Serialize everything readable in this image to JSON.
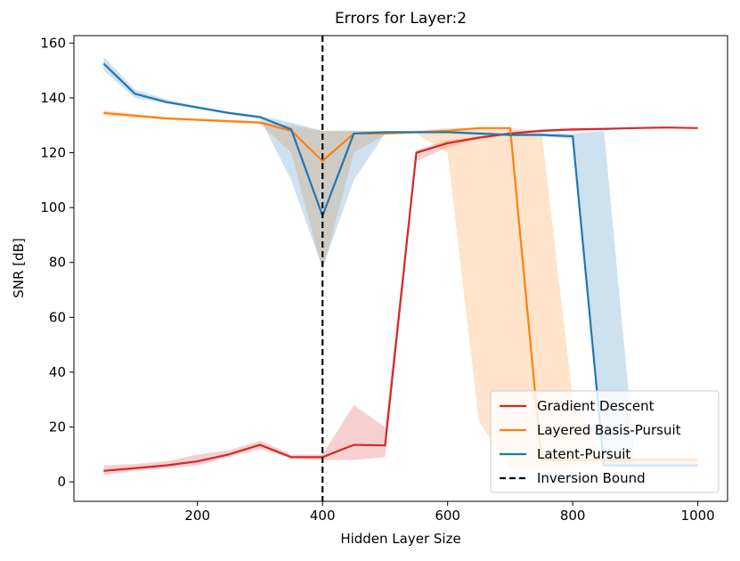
{
  "chart_data": {
    "type": "line",
    "title": "Errors for Layer:2",
    "x_label": "Hidden Layer Size",
    "y_label": "SNR [dB]",
    "x": [
      50,
      100,
      150,
      200,
      250,
      300,
      350,
      400,
      450,
      500,
      550,
      600,
      650,
      700,
      750,
      800,
      850,
      900,
      950,
      1000
    ],
    "series": [
      {
        "name": "Gradient Descent",
        "color": "#d62728",
        "values": [
          4,
          5,
          6,
          7.5,
          10,
          13.5,
          9,
          9,
          13.5,
          13.3,
          120,
          123.5,
          125.5,
          127,
          128,
          128.5,
          128.7,
          129,
          129.2,
          129
        ],
        "lower": [
          2.5,
          4,
          5,
          6,
          9,
          12,
          8.5,
          8,
          8,
          9,
          117,
          122,
          125,
          126.5,
          127.5,
          128,
          128.4,
          128.8,
          129,
          128.8
        ],
        "upper": [
          6,
          6.5,
          7.5,
          10,
          11.5,
          15,
          10,
          10,
          28,
          20,
          121,
          124.5,
          126,
          127.5,
          128.5,
          129,
          129,
          129.3,
          129.4,
          129.2
        ]
      },
      {
        "name": "Layered Basis-Pursuit",
        "color": "#ff7f0e",
        "values": [
          134.5,
          133.5,
          132.5,
          132,
          131.5,
          131,
          128,
          117,
          127,
          127,
          127.5,
          128,
          129,
          129,
          8,
          8,
          8,
          8,
          8,
          8
        ],
        "lower": [
          133.5,
          132.8,
          132,
          131.5,
          131,
          130.5,
          120,
          77,
          120,
          126.5,
          127,
          120,
          22,
          5,
          5,
          5,
          7,
          7,
          7,
          7
        ],
        "upper": [
          135.5,
          134.2,
          133,
          132.5,
          132,
          131.5,
          130,
          128,
          128,
          127.5,
          128,
          129,
          129,
          129,
          128,
          30,
          9,
          9,
          9,
          9
        ]
      },
      {
        "name": "Latent-Pursuit",
        "color": "#1f77b4",
        "values": [
          152.5,
          141.5,
          138.5,
          136.5,
          134.5,
          133,
          128.5,
          97,
          127,
          127.5,
          127.5,
          127.5,
          127,
          126.5,
          126.5,
          126,
          6,
          6,
          6,
          6
        ],
        "lower": [
          150,
          140,
          138,
          136,
          134,
          132.5,
          110,
          78,
          110,
          127,
          127,
          127,
          126.5,
          126,
          126,
          125,
          6,
          5,
          5,
          5
        ],
        "upper": [
          155,
          143,
          139.5,
          137,
          135,
          133.5,
          131,
          128,
          128,
          128,
          128,
          128,
          127.5,
          127,
          127,
          127,
          128,
          7,
          7,
          7
        ]
      }
    ],
    "vlines": [
      {
        "x": 400,
        "name": "Inversion Bound",
        "color": "#000000"
      }
    ],
    "xlim": [
      2.5,
      1047.5
    ],
    "ylim": [
      -7.1,
      162.7
    ],
    "xticks": [
      200,
      400,
      600,
      800,
      1000
    ],
    "yticks": [
      0,
      20,
      40,
      60,
      80,
      100,
      120,
      140,
      160
    ],
    "legend": "lower right"
  }
}
